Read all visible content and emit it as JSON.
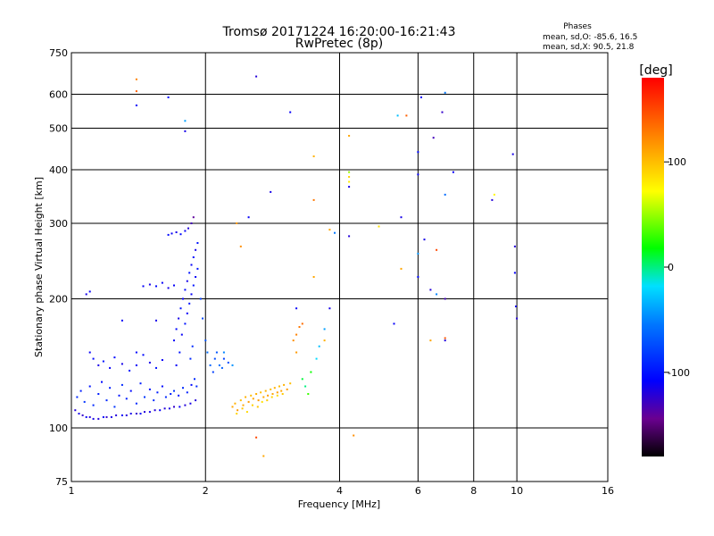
{
  "chart_data": {
    "type": "scatter",
    "title": "Tromsø 20171224 16:20:00-16:21:43",
    "subtitle": "RwPretec (8p)",
    "xlabel": "Frequency [MHz]",
    "ylabel": "Stationary phase Virtual Height [km]",
    "x_scale": "log",
    "y_scale": "log",
    "xlim": [
      1,
      16
    ],
    "ylim": [
      75,
      750
    ],
    "x_ticks": [
      "1",
      "2",
      "4",
      "6",
      "8",
      "10",
      "16"
    ],
    "y_ticks": [
      "75",
      "100",
      "200",
      "300",
      "400",
      "500",
      "600",
      "750"
    ],
    "grid": true,
    "stats": {
      "heading": "Phases",
      "o_line": "mean, sd,O: -85.6, 16.5",
      "x_line": "mean, sd,X:  90.5, 21.8"
    },
    "colorbar": {
      "label": "[deg]",
      "min": -180,
      "max": 180,
      "ticks": [
        "100",
        "0",
        "-100"
      ]
    },
    "series": [
      {
        "points": [
          [
            1.02,
            110,
            -120
          ],
          [
            1.04,
            108,
            -115
          ],
          [
            1.06,
            107,
            -125
          ],
          [
            1.08,
            106,
            -110
          ],
          [
            1.1,
            106,
            -120
          ],
          [
            1.12,
            105,
            -115
          ],
          [
            1.15,
            105,
            -120
          ],
          [
            1.18,
            106,
            -110
          ],
          [
            1.2,
            106,
            -125
          ],
          [
            1.23,
            106,
            -115
          ],
          [
            1.26,
            107,
            -120
          ],
          [
            1.3,
            107,
            -110
          ],
          [
            1.33,
            107,
            -120
          ],
          [
            1.36,
            108,
            -115
          ],
          [
            1.4,
            108,
            -125
          ],
          [
            1.43,
            108,
            -110
          ],
          [
            1.46,
            109,
            -120
          ],
          [
            1.5,
            109,
            -115
          ],
          [
            1.54,
            110,
            -120
          ],
          [
            1.58,
            110,
            -110
          ],
          [
            1.62,
            111,
            -120
          ],
          [
            1.66,
            111,
            -115
          ],
          [
            1.7,
            112,
            -125
          ],
          [
            1.75,
            112,
            -110
          ],
          [
            1.8,
            113,
            -120
          ],
          [
            1.85,
            114,
            -115
          ],
          [
            1.9,
            116,
            -120
          ],
          [
            1.03,
            118,
            -90
          ],
          [
            1.05,
            122,
            -95
          ],
          [
            1.07,
            115,
            -85
          ],
          [
            1.1,
            125,
            -100
          ],
          [
            1.12,
            113,
            -90
          ],
          [
            1.15,
            120,
            -95
          ],
          [
            1.17,
            128,
            -105
          ],
          [
            1.2,
            116,
            -90
          ],
          [
            1.22,
            124,
            -95
          ],
          [
            1.25,
            112,
            -85
          ],
          [
            1.28,
            119,
            -100
          ],
          [
            1.3,
            126,
            -90
          ],
          [
            1.33,
            117,
            -95
          ],
          [
            1.36,
            122,
            -105
          ],
          [
            1.4,
            114,
            -90
          ],
          [
            1.43,
            127,
            -95
          ],
          [
            1.46,
            118,
            -85
          ],
          [
            1.5,
            123,
            -100
          ],
          [
            1.53,
            116,
            -90
          ],
          [
            1.56,
            121,
            -95
          ],
          [
            1.6,
            125,
            -105
          ],
          [
            1.63,
            118,
            -90
          ],
          [
            1.67,
            120,
            -95
          ],
          [
            1.7,
            122,
            -85
          ],
          [
            1.74,
            119,
            -100
          ],
          [
            1.78,
            124,
            -90
          ],
          [
            1.82,
            121,
            -95
          ],
          [
            1.86,
            126,
            -105
          ],
          [
            1.1,
            150,
            -110
          ],
          [
            1.12,
            145,
            -105
          ],
          [
            1.15,
            140,
            -115
          ],
          [
            1.18,
            143,
            -100
          ],
          [
            1.22,
            138,
            -110
          ],
          [
            1.25,
            146,
            -105
          ],
          [
            1.3,
            141,
            -115
          ],
          [
            1.35,
            136,
            -100
          ],
          [
            1.4,
            140,
            -110
          ],
          [
            1.45,
            148,
            -105
          ],
          [
            1.5,
            142,
            -115
          ],
          [
            1.55,
            138,
            -100
          ],
          [
            1.6,
            144,
            -110
          ],
          [
            1.3,
            178,
            -110
          ],
          [
            1.4,
            150,
            -105
          ],
          [
            1.55,
            178,
            -115
          ],
          [
            1.08,
            205,
            -115
          ],
          [
            1.1,
            208,
            -110
          ],
          [
            1.45,
            214,
            -110
          ],
          [
            1.5,
            216,
            -115
          ],
          [
            1.55,
            214,
            -105
          ],
          [
            1.6,
            218,
            -110
          ],
          [
            1.65,
            212,
            -115
          ],
          [
            1.7,
            215,
            -110
          ],
          [
            1.65,
            282,
            -105
          ],
          [
            1.68,
            284,
            -110
          ],
          [
            1.72,
            286,
            -115
          ],
          [
            1.76,
            283,
            -105
          ],
          [
            1.8,
            288,
            -110
          ],
          [
            1.83,
            292,
            -120
          ],
          [
            1.86,
            300,
            -130
          ],
          [
            1.88,
            310,
            -140
          ],
          [
            1.7,
            160,
            -110
          ],
          [
            1.72,
            170,
            -105
          ],
          [
            1.74,
            180,
            -115
          ],
          [
            1.76,
            190,
            -100
          ],
          [
            1.78,
            200,
            -110
          ],
          [
            1.8,
            210,
            -105
          ],
          [
            1.82,
            220,
            -115
          ],
          [
            1.84,
            230,
            -100
          ],
          [
            1.86,
            240,
            -110
          ],
          [
            1.88,
            250,
            -105
          ],
          [
            1.9,
            260,
            -115
          ],
          [
            1.92,
            270,
            -100
          ],
          [
            1.72,
            140,
            -110
          ],
          [
            1.75,
            150,
            -100
          ],
          [
            1.77,
            165,
            -110
          ],
          [
            1.8,
            175,
            -100
          ],
          [
            1.82,
            185,
            -110
          ],
          [
            1.84,
            195,
            -100
          ],
          [
            1.86,
            205,
            -110
          ],
          [
            1.88,
            215,
            -100
          ],
          [
            1.9,
            225,
            -110
          ],
          [
            1.92,
            235,
            -100
          ],
          [
            1.85,
            145,
            -90
          ],
          [
            1.87,
            155,
            -90
          ],
          [
            1.89,
            130,
            -90
          ],
          [
            1.91,
            125,
            -90
          ],
          [
            1.95,
            200,
            -80
          ],
          [
            1.97,
            180,
            -75
          ],
          [
            2.0,
            160,
            -70
          ],
          [
            2.02,
            150,
            -60
          ],
          [
            2.05,
            140,
            -65
          ],
          [
            2.08,
            135,
            -80
          ],
          [
            2.1,
            145,
            -75
          ],
          [
            2.12,
            150,
            -70
          ],
          [
            2.15,
            140,
            -60
          ],
          [
            2.18,
            138,
            -65
          ],
          [
            2.2,
            145,
            -80
          ],
          [
            2.25,
            142,
            -75
          ],
          [
            1.4,
            565,
            -110
          ],
          [
            1.65,
            590,
            -105
          ],
          [
            1.8,
            492,
            -115
          ],
          [
            2.6,
            660,
            -120
          ],
          [
            3.1,
            545,
            -110
          ],
          [
            2.8,
            355,
            -115
          ],
          [
            2.5,
            310,
            -110
          ],
          [
            4.2,
            365,
            -115
          ],
          [
            4.2,
            280,
            -120
          ],
          [
            5.5,
            310,
            -115
          ],
          [
            5.3,
            175,
            -110
          ],
          [
            6.0,
            440,
            -105
          ],
          [
            6.1,
            590,
            -110
          ],
          [
            6.4,
            210,
            -120
          ],
          [
            6.8,
            545,
            -125
          ],
          [
            6.9,
            200,
            -130
          ],
          [
            6.2,
            275,
            -115
          ],
          [
            6.9,
            160,
            -120
          ],
          [
            7.2,
            395,
            -110
          ],
          [
            8.8,
            340,
            -120
          ],
          [
            9.8,
            435,
            -115
          ],
          [
            9.9,
            265,
            -120
          ],
          [
            9.9,
            230,
            -110
          ],
          [
            9.95,
            192,
            -115
          ],
          [
            10.0,
            180,
            -120
          ],
          [
            6.0,
            225,
            -105
          ],
          [
            6.0,
            390,
            -110
          ],
          [
            6.5,
            475,
            -130
          ],
          [
            3.2,
            190,
            -110
          ],
          [
            3.8,
            190,
            -115
          ]
        ]
      },
      {
        "points": [
          [
            2.3,
            112,
            110
          ],
          [
            2.33,
            114,
            105
          ],
          [
            2.36,
            110,
            115
          ],
          [
            2.4,
            116,
            100
          ],
          [
            2.43,
            113,
            110
          ],
          [
            2.46,
            118,
            105
          ],
          [
            2.5,
            115,
            115
          ],
          [
            2.53,
            119,
            100
          ],
          [
            2.56,
            117,
            110
          ],
          [
            2.6,
            120,
            105
          ],
          [
            2.63,
            116,
            115
          ],
          [
            2.66,
            121,
            100
          ],
          [
            2.7,
            118,
            110
          ],
          [
            2.73,
            122,
            105
          ],
          [
            2.76,
            119,
            115
          ],
          [
            2.8,
            123,
            100
          ],
          [
            2.83,
            120,
            110
          ],
          [
            2.86,
            124,
            105
          ],
          [
            2.9,
            121,
            115
          ],
          [
            2.93,
            125,
            100
          ],
          [
            2.96,
            122,
            110
          ],
          [
            3.0,
            126,
            105
          ],
          [
            3.05,
            123,
            115
          ],
          [
            3.1,
            127,
            100
          ],
          [
            2.35,
            108,
            90
          ],
          [
            2.42,
            111,
            95
          ],
          [
            2.48,
            109,
            88
          ],
          [
            2.55,
            113,
            92
          ],
          [
            2.62,
            112,
            96
          ],
          [
            2.68,
            115,
            85
          ],
          [
            2.75,
            116,
            94
          ],
          [
            2.82,
            118,
            90
          ],
          [
            2.9,
            119,
            87
          ],
          [
            2.98,
            120,
            95
          ],
          [
            3.2,
            165,
            125
          ],
          [
            3.25,
            172,
            130
          ],
          [
            3.15,
            160,
            120
          ],
          [
            3.3,
            175,
            135
          ],
          [
            3.8,
            290,
            110
          ],
          [
            4.2,
            385,
            90
          ],
          [
            4.2,
            375,
            80
          ],
          [
            4.3,
            96,
            120
          ],
          [
            4.9,
            295,
            85
          ],
          [
            5.5,
            235,
            110
          ],
          [
            5.65,
            535,
            140
          ],
          [
            6.6,
            260,
            150
          ],
          [
            6.9,
            162,
            145
          ],
          [
            8.9,
            350,
            75
          ],
          [
            3.5,
            340,
            130
          ],
          [
            3.5,
            430,
            105
          ],
          [
            1.4,
            650,
            125
          ],
          [
            1.4,
            610,
            140
          ],
          [
            2.4,
            265,
            120
          ],
          [
            2.35,
            300,
            115
          ],
          [
            2.6,
            95,
            150
          ],
          [
            2.7,
            86,
            110
          ],
          [
            3.2,
            150,
            115
          ],
          [
            4.2,
            480,
            110
          ],
          [
            3.7,
            160,
            105
          ],
          [
            3.5,
            225,
            110
          ],
          [
            6.4,
            160,
            110
          ]
        ]
      },
      {
        "points": [
          [
            3.3,
            130,
            10
          ],
          [
            3.35,
            125,
            0
          ],
          [
            3.4,
            120,
            30
          ],
          [
            3.45,
            135,
            20
          ],
          [
            3.55,
            145,
            -20
          ],
          [
            3.6,
            155,
            -30
          ],
          [
            3.7,
            170,
            -40
          ],
          [
            1.8,
            520,
            -40
          ],
          [
            6.9,
            350,
            -60
          ],
          [
            6.9,
            605,
            -55
          ],
          [
            6.6,
            205,
            -50
          ],
          [
            6.0,
            255,
            -45
          ],
          [
            3.9,
            285,
            -55
          ],
          [
            4.2,
            395,
            50
          ],
          [
            5.4,
            535,
            -30
          ],
          [
            2.2,
            150,
            -50
          ],
          [
            2.3,
            140,
            -45
          ]
        ]
      }
    ]
  }
}
